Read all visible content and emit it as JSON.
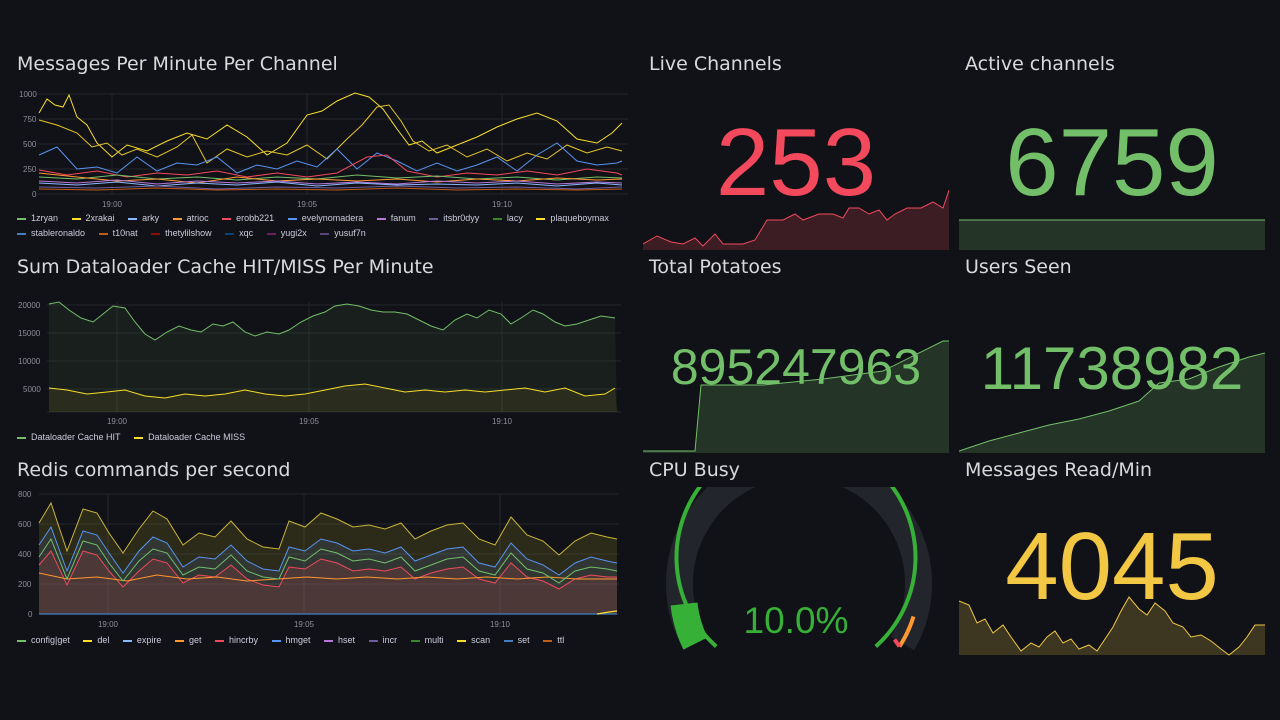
{
  "panels": {
    "messages": {
      "title": "Messages Per Minute Per Channel",
      "yticks": [
        "1000",
        "750",
        "500",
        "250",
        "0"
      ],
      "xticks": [
        "19:00",
        "19:05",
        "19:10"
      ],
      "legend": [
        {
          "name": "1zryan",
          "color": "#73bf69"
        },
        {
          "name": "2xrakai",
          "color": "#fade2a"
        },
        {
          "name": "arky",
          "color": "#8ab8ff"
        },
        {
          "name": "atrioc",
          "color": "#ff9830"
        },
        {
          "name": "erobb221",
          "color": "#f2495c"
        },
        {
          "name": "evelynomadera",
          "color": "#5794f2"
        },
        {
          "name": "fanum",
          "color": "#b877d9"
        },
        {
          "name": "itsbr0dyy",
          "color": "#705da0"
        },
        {
          "name": "lacy",
          "color": "#37872d"
        },
        {
          "name": "plaqueboymax",
          "color": "#fade2a"
        },
        {
          "name": "stableronaldo",
          "color": "#447ebc"
        },
        {
          "name": "t10nat",
          "color": "#c15c17"
        },
        {
          "name": "thetylilshow",
          "color": "#890f02"
        },
        {
          "name": "xqc",
          "color": "#0a437c"
        },
        {
          "name": "yugi2x",
          "color": "#6d1f62"
        },
        {
          "name": "yusuf7n",
          "color": "#584477"
        }
      ]
    },
    "cache": {
      "title": "Sum Dataloader Cache HIT/MISS Per Minute",
      "yticks": [
        "20000",
        "15000",
        "10000",
        "5000"
      ],
      "xticks": [
        "19:00",
        "19:05",
        "19:10"
      ],
      "legend": [
        {
          "name": "Dataloader Cache HIT",
          "color": "#73bf69"
        },
        {
          "name": "Dataloader Cache MISS",
          "color": "#fade2a"
        }
      ]
    },
    "redis": {
      "title": "Redis commands per second",
      "yticks": [
        "800",
        "600",
        "400",
        "200",
        "0"
      ],
      "xticks": [
        "19:00",
        "19:05",
        "19:10"
      ],
      "legend": [
        {
          "name": "config|get",
          "color": "#73bf69"
        },
        {
          "name": "del",
          "color": "#fade2a"
        },
        {
          "name": "expire",
          "color": "#8ab8ff"
        },
        {
          "name": "get",
          "color": "#ff9830"
        },
        {
          "name": "hincrby",
          "color": "#f2495c"
        },
        {
          "name": "hmget",
          "color": "#5794f2"
        },
        {
          "name": "hset",
          "color": "#b877d9"
        },
        {
          "name": "incr",
          "color": "#705da0"
        },
        {
          "name": "multi",
          "color": "#37872d"
        },
        {
          "name": "scan",
          "color": "#fade2a"
        },
        {
          "name": "set",
          "color": "#447ebc"
        },
        {
          "name": "ttl",
          "color": "#c15c17"
        }
      ]
    },
    "live": {
      "title": "Live Channels",
      "value": "253",
      "color": "#f2495c"
    },
    "active": {
      "title": "Active channels",
      "value": "6759",
      "color": "#73bf69"
    },
    "potatoes": {
      "title": "Total Potatoes",
      "value": "895247963",
      "color": "#73bf69"
    },
    "users": {
      "title": "Users Seen",
      "value": "11738982",
      "color": "#73bf69"
    },
    "cpu": {
      "title": "CPU Busy",
      "value": "10.0%",
      "fraction": 0.1,
      "color": "#37b037"
    },
    "msgread": {
      "title": "Messages Read/Min",
      "value": "4045",
      "color": "#f2c744"
    }
  }
}
